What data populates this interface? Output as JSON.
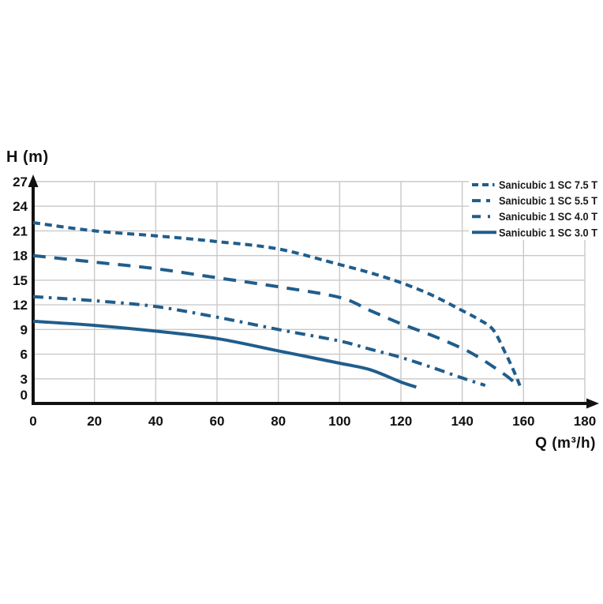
{
  "chart_data": {
    "type": "line",
    "title": "",
    "xlabel": "Q (m³/h)",
    "ylabel": "H (m)",
    "xlim": [
      0,
      180
    ],
    "ylim": [
      0,
      27
    ],
    "x_ticks": [
      0,
      20,
      40,
      60,
      80,
      100,
      120,
      140,
      160,
      180
    ],
    "y_ticks": [
      0,
      3,
      6,
      9,
      12,
      15,
      18,
      21,
      24,
      27
    ],
    "grid": true,
    "legend_position": "top-right",
    "colors": {
      "curve": "#205d8c",
      "grid": "#c9c9c9",
      "axis": "#111111",
      "tick_text": "#111111",
      "legend_text": "#1a1a1a",
      "background": "#ffffff"
    },
    "series": [
      {
        "name": "Sanicubic 1 SC 7.5 T",
        "dash": "9 6",
        "legend_dash": "8 5 8 5 2.5 6",
        "points": [
          [
            0,
            22
          ],
          [
            20,
            21
          ],
          [
            40,
            20.4
          ],
          [
            60,
            19.7
          ],
          [
            80,
            18.8
          ],
          [
            100,
            16.9
          ],
          [
            110,
            15.9
          ],
          [
            120,
            14.7
          ],
          [
            130,
            13.2
          ],
          [
            140,
            11.3
          ],
          [
            145,
            10.3
          ],
          [
            150,
            9
          ],
          [
            154,
            6.2
          ],
          [
            157,
            3.8
          ],
          [
            159,
            2
          ]
        ]
      },
      {
        "name": "Sanicubic 1 SC 5.5 T",
        "dash": "16 11",
        "legend_dash": "11 7 5 20",
        "points": [
          [
            0,
            18
          ],
          [
            20,
            17.2
          ],
          [
            40,
            16.4
          ],
          [
            60,
            15.3
          ],
          [
            80,
            14.2
          ],
          [
            100,
            12.9
          ],
          [
            110,
            11.3
          ],
          [
            120,
            9.7
          ],
          [
            130,
            8.3
          ],
          [
            140,
            6.7
          ],
          [
            145,
            5.7
          ],
          [
            150,
            4.5
          ],
          [
            155,
            3.2
          ],
          [
            158.5,
            2
          ]
        ]
      },
      {
        "name": "Sanicubic 1 SC 4.0 T",
        "dash": "13 7 3.5 7",
        "legend_dash": "11 9 3 20",
        "points": [
          [
            0,
            13
          ],
          [
            20,
            12.5
          ],
          [
            40,
            11.8
          ],
          [
            60,
            10.5
          ],
          [
            80,
            9
          ],
          [
            100,
            7.6
          ],
          [
            110,
            6.6
          ],
          [
            120,
            5.6
          ],
          [
            130,
            4.4
          ],
          [
            140,
            3.1
          ],
          [
            147.5,
            2.2
          ]
        ]
      },
      {
        "name": "Sanicubic 1 SC 3.0 T",
        "dash": "",
        "legend_dash": "",
        "points": [
          [
            0,
            10
          ],
          [
            20,
            9.5
          ],
          [
            40,
            8.8
          ],
          [
            60,
            7.9
          ],
          [
            80,
            6.4
          ],
          [
            100,
            4.9
          ],
          [
            110,
            4.1
          ],
          [
            120,
            2.6
          ],
          [
            125,
            2
          ]
        ]
      }
    ]
  }
}
